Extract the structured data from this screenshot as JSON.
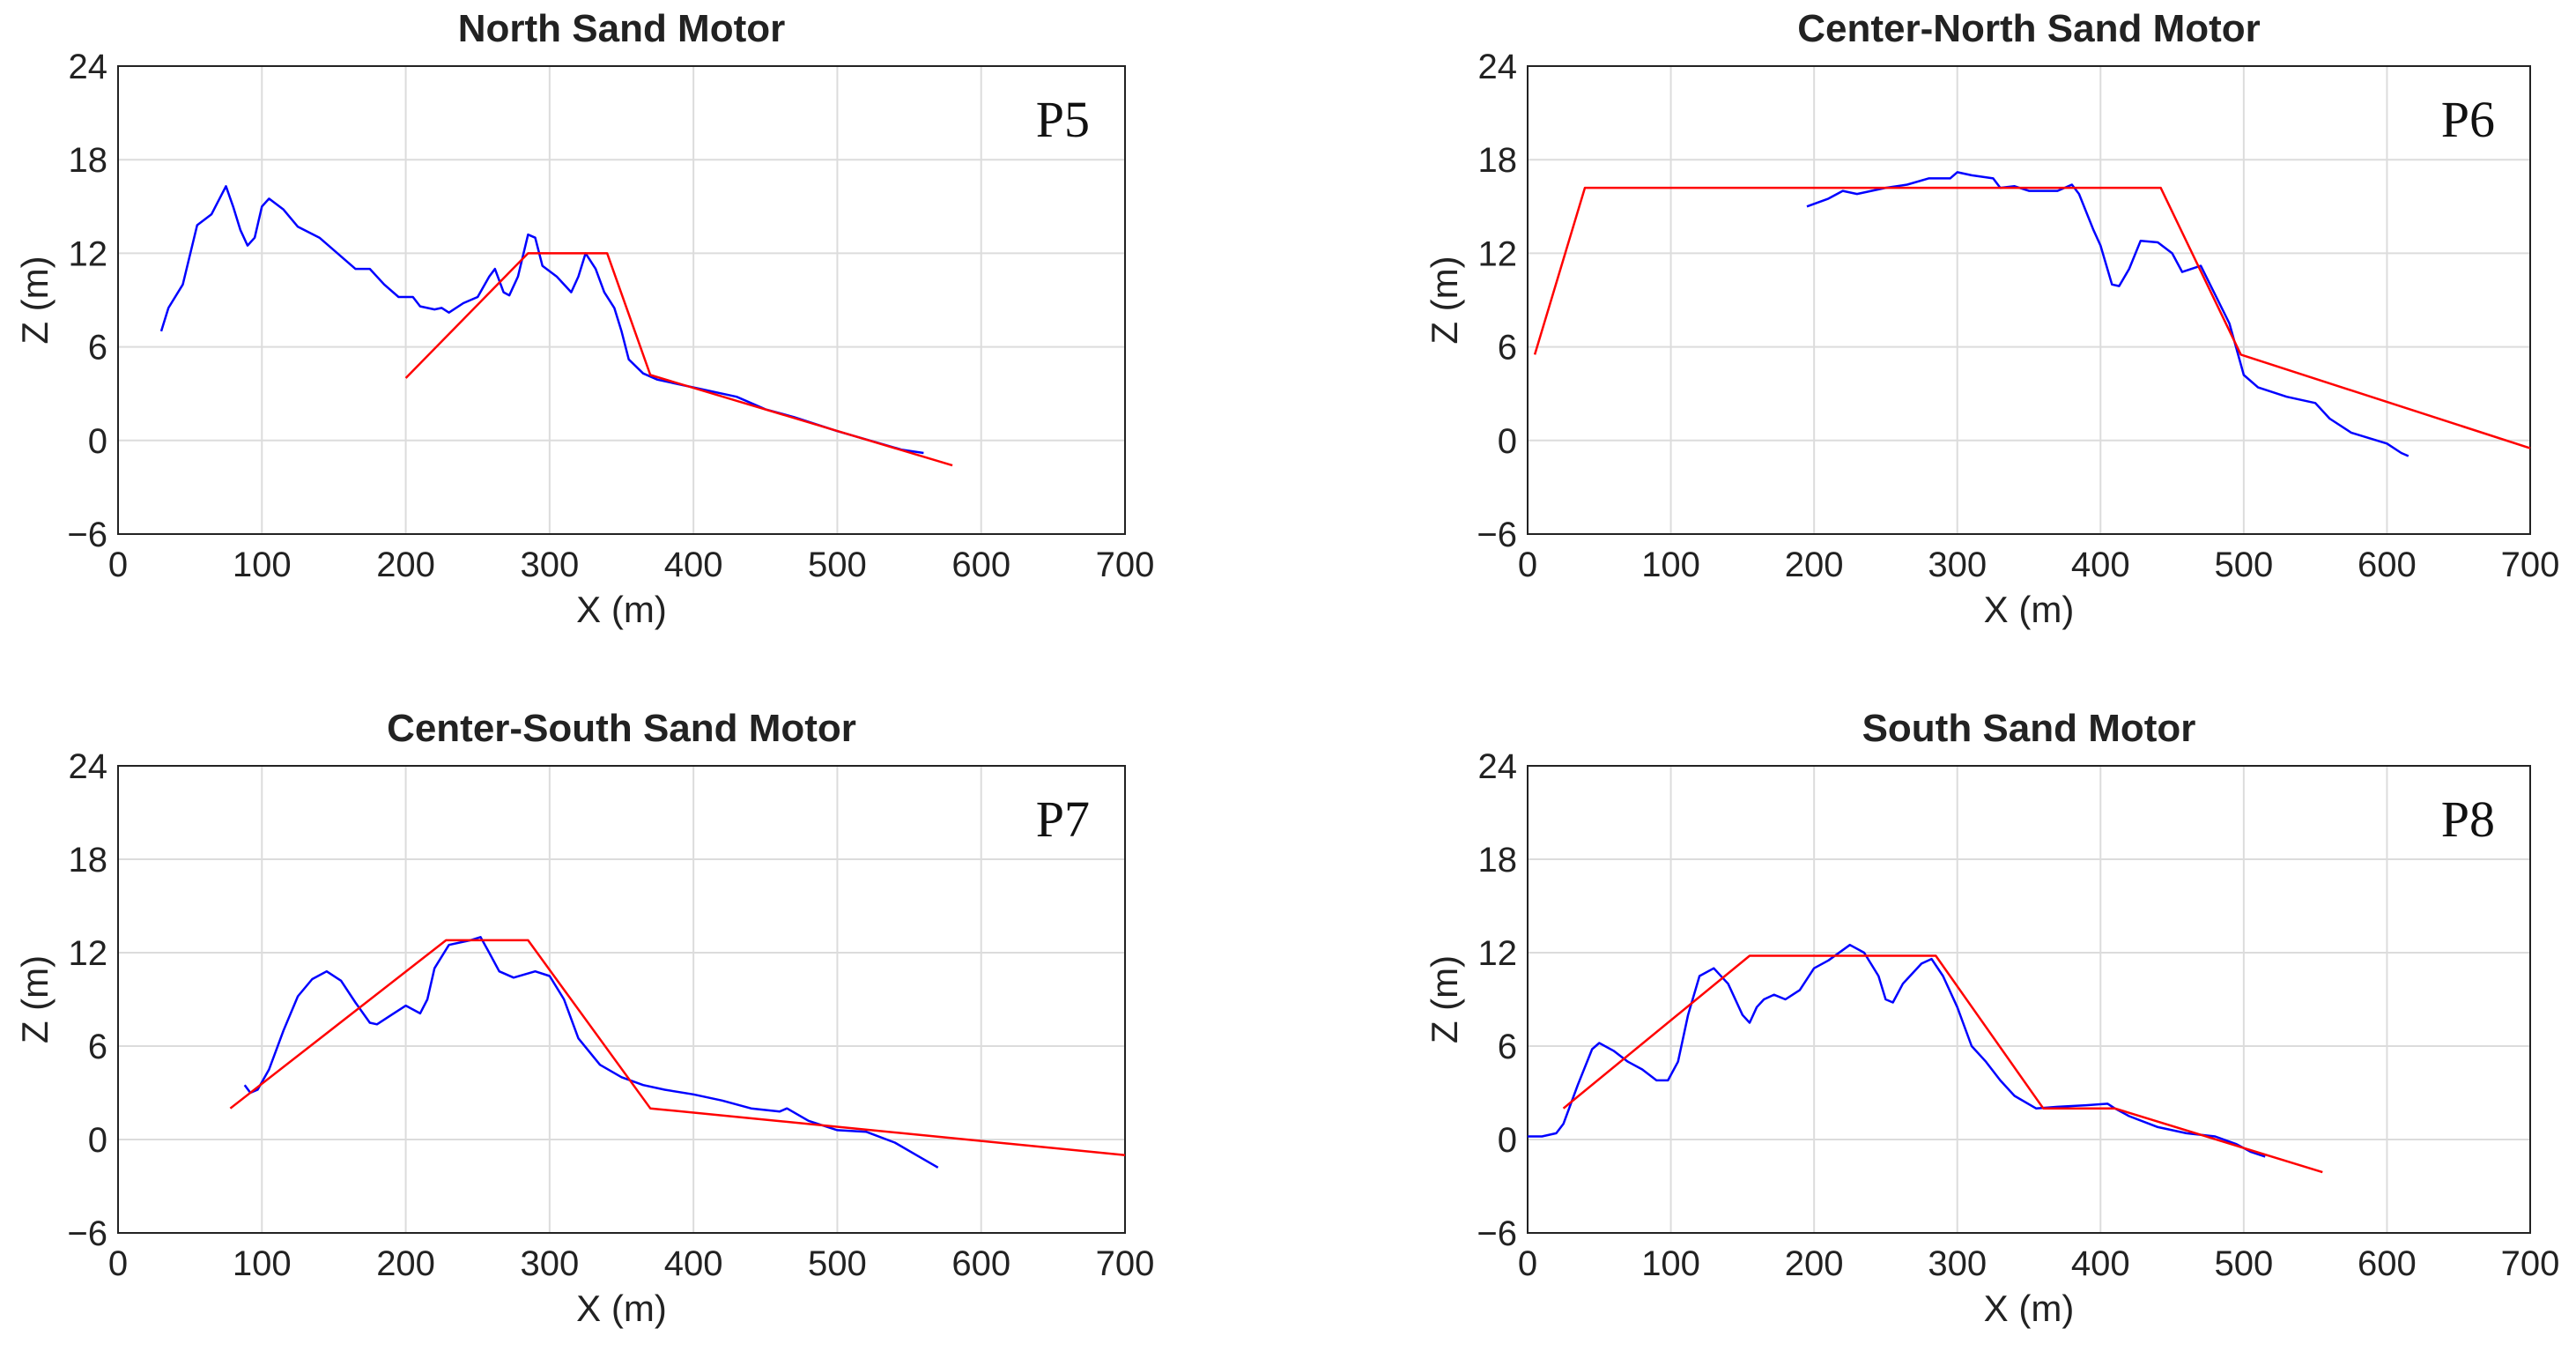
{
  "chart_data": [
    {
      "type": "line",
      "title": "North Sand Motor",
      "annotation": "P5",
      "xlabel": "X (m)",
      "ylabel": "Z (m)",
      "xlim": [
        0,
        700
      ],
      "ylim": [
        -6,
        24
      ],
      "xticks": [
        0,
        100,
        200,
        300,
        400,
        500,
        600,
        700
      ],
      "yticks": [
        {
          "value": -6,
          "label": "−6"
        },
        0,
        6,
        12,
        18,
        24
      ],
      "grid": true,
      "series": [
        {
          "color": "#0000ff",
          "x": [
            30,
            35,
            45,
            55,
            65,
            75,
            80,
            85,
            90,
            95,
            100,
            105,
            115,
            125,
            140,
            155,
            165,
            175,
            185,
            195,
            205,
            210,
            220,
            225,
            230,
            240,
            250,
            258,
            262,
            268,
            272,
            278,
            285,
            290,
            295,
            305,
            315,
            320,
            325,
            332,
            338,
            345,
            350,
            355,
            365,
            375,
            400,
            430,
            450,
            470,
            500,
            530,
            545,
            560
          ],
          "values": [
            7,
            8.5,
            10,
            13.8,
            14.5,
            16.3,
            15,
            13.5,
            12.5,
            13,
            15,
            15.5,
            14.8,
            13.7,
            13,
            11.8,
            11,
            11,
            10,
            9.2,
            9.2,
            8.6,
            8.4,
            8.5,
            8.2,
            8.8,
            9.2,
            10.5,
            11,
            9.5,
            9.3,
            10.5,
            13.2,
            13,
            11.2,
            10.5,
            9.5,
            10.5,
            12,
            11,
            9.5,
            8.5,
            7,
            5.2,
            4.3,
            3.9,
            3.4,
            2.8,
            2,
            1.5,
            0.6,
            -0.2,
            -0.6,
            -0.8
          ]
        },
        {
          "color": "#ff0000",
          "x": [
            200,
            285,
            340,
            370,
            580
          ],
          "values": [
            4,
            12,
            12,
            4.2,
            -1.6
          ]
        }
      ]
    },
    {
      "type": "line",
      "title": "Center-North Sand Motor",
      "annotation": "P6",
      "xlabel": "X (m)",
      "ylabel": "Z (m)",
      "xlim": [
        0,
        700
      ],
      "ylim": [
        -6,
        24
      ],
      "xticks": [
        0,
        100,
        200,
        300,
        400,
        500,
        600,
        700
      ],
      "yticks": [
        {
          "value": -6,
          "label": "−6"
        },
        0,
        6,
        12,
        18,
        24
      ],
      "grid": true,
      "series": [
        {
          "color": "#0000ff",
          "x": [
            195,
            210,
            220,
            230,
            250,
            265,
            280,
            295,
            300,
            310,
            325,
            330,
            340,
            350,
            370,
            380,
            385,
            395,
            400,
            408,
            413,
            420,
            428,
            440,
            450,
            457,
            470,
            490,
            500,
            510,
            530,
            550,
            560,
            575,
            600,
            610,
            615
          ],
          "values": [
            15,
            15.5,
            16,
            15.8,
            16.2,
            16.4,
            16.8,
            16.8,
            17.2,
            17,
            16.8,
            16.2,
            16.3,
            16,
            16,
            16.4,
            15.8,
            13.5,
            12.5,
            10,
            9.9,
            11,
            12.8,
            12.7,
            12,
            10.8,
            11.2,
            7.5,
            4.2,
            3.4,
            2.8,
            2.4,
            1.4,
            0.5,
            -0.2,
            -0.8,
            -1
          ]
        },
        {
          "color": "#ff0000",
          "x": [
            5,
            40,
            442,
            498,
            700
          ],
          "values": [
            5.5,
            16.2,
            16.2,
            5.5,
            -0.5
          ]
        }
      ]
    },
    {
      "type": "line",
      "title": "Center-South Sand Motor",
      "annotation": "P7",
      "xlabel": "X (m)",
      "ylabel": "Z (m)",
      "xlim": [
        0,
        700
      ],
      "ylim": [
        -6,
        24
      ],
      "xticks": [
        0,
        100,
        200,
        300,
        400,
        500,
        600,
        700
      ],
      "yticks": [
        {
          "value": -6,
          "label": "−6"
        },
        0,
        6,
        12,
        18,
        24
      ],
      "grid": true,
      "series": [
        {
          "color": "#0000ff",
          "x": [
            88,
            92,
            97,
            105,
            115,
            125,
            135,
            145,
            155,
            165,
            175,
            180,
            190,
            200,
            210,
            215,
            220,
            230,
            245,
            252,
            258,
            265,
            275,
            290,
            300,
            310,
            320,
            335,
            350,
            365,
            380,
            400,
            420,
            440,
            460,
            465,
            480,
            500,
            520,
            540,
            555,
            570
          ],
          "values": [
            3.5,
            3,
            3.2,
            4.5,
            7,
            9.2,
            10.3,
            10.8,
            10.2,
            8.8,
            7.5,
            7.4,
            8,
            8.6,
            8.1,
            9,
            11,
            12.5,
            12.8,
            13,
            12,
            10.8,
            10.4,
            10.8,
            10.5,
            9,
            6.5,
            4.8,
            4,
            3.5,
            3.2,
            2.9,
            2.5,
            2,
            1.8,
            2,
            1.2,
            0.6,
            0.5,
            -0.2,
            -1,
            -1.8
          ]
        },
        {
          "color": "#ff0000",
          "x": [
            78,
            228,
            285,
            370,
            700
          ],
          "values": [
            2,
            12.8,
            12.8,
            2,
            -1
          ]
        }
      ]
    },
    {
      "type": "line",
      "title": "South Sand Motor",
      "annotation": "P8",
      "xlabel": "X (m)",
      "ylabel": "Z (m)",
      "xlim": [
        0,
        700
      ],
      "ylim": [
        -6,
        24
      ],
      "xticks": [
        0,
        100,
        200,
        300,
        400,
        500,
        600,
        700
      ],
      "yticks": [
        {
          "value": -6,
          "label": "−6"
        },
        0,
        6,
        12,
        18,
        24
      ],
      "grid": true,
      "series": [
        {
          "color": "#0000ff",
          "x": [
            0,
            10,
            20,
            25,
            35,
            45,
            50,
            60,
            70,
            80,
            90,
            98,
            105,
            112,
            120,
            130,
            140,
            150,
            155,
            160,
            165,
            172,
            180,
            190,
            200,
            210,
            225,
            235,
            245,
            250,
            255,
            262,
            275,
            282,
            290,
            300,
            310,
            320,
            330,
            340,
            355,
            370,
            390,
            405,
            410,
            420,
            440,
            460,
            480,
            495,
            505,
            515
          ],
          "values": [
            0.2,
            0.2,
            0.4,
            1,
            3.5,
            5.8,
            6.2,
            5.7,
            5,
            4.5,
            3.8,
            3.8,
            5,
            8,
            10.5,
            11,
            10,
            8,
            7.5,
            8.5,
            9,
            9.3,
            9,
            9.6,
            11,
            11.5,
            12.5,
            12,
            10.5,
            9,
            8.8,
            10,
            11.3,
            11.6,
            10.5,
            8.5,
            6,
            5,
            3.8,
            2.8,
            2,
            2.1,
            2.2,
            2.3,
            2,
            1.5,
            0.8,
            0.4,
            0.2,
            -0.3,
            -0.8,
            -1.1
          ]
        },
        {
          "color": "#ff0000",
          "x": [
            25,
            155,
            285,
            360,
            410,
            555
          ],
          "values": [
            2,
            11.8,
            11.8,
            2,
            2,
            -2.1
          ]
        }
      ]
    }
  ]
}
